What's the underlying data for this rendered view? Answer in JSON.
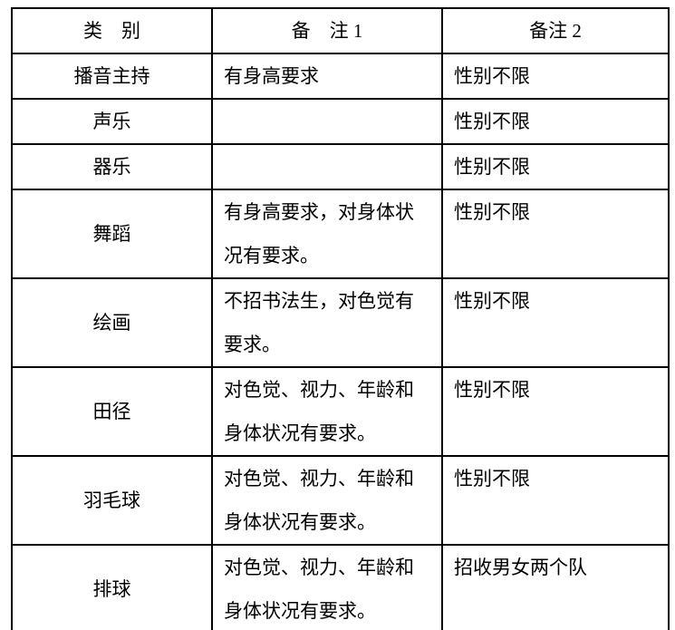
{
  "colors": {
    "border": "#000000",
    "text": "#000000",
    "background": "#ffffff"
  },
  "table": {
    "headers": {
      "category": "类　别",
      "note1": "备　注 1",
      "note2": "备注 2"
    },
    "rows": [
      {
        "category": "播音主持",
        "note1": "有身高要求",
        "note2": "性别不限"
      },
      {
        "category": "声乐",
        "note1": "",
        "note2": "性别不限"
      },
      {
        "category": "器乐",
        "note1": "",
        "note2": "性别不限"
      },
      {
        "category": "舞蹈",
        "note1": "有身高要求，对身体状\n况有要求。",
        "note2": "性别不限"
      },
      {
        "category": "绘画",
        "note1": "不招书法生，对色觉有\n要求。",
        "note2": "性别不限"
      },
      {
        "category": "田径",
        "note1": "对色觉、视力、年龄和\n身体状况有要求。",
        "note2": "性别不限"
      },
      {
        "category": "羽毛球",
        "note1": "对色觉、视力、年龄和\n身体状况有要求。",
        "note2": "性别不限"
      },
      {
        "category": "排球",
        "note1": "对色觉、视力、年龄和\n身体状况有要求。",
        "note2": "招收男女两个队"
      }
    ]
  }
}
